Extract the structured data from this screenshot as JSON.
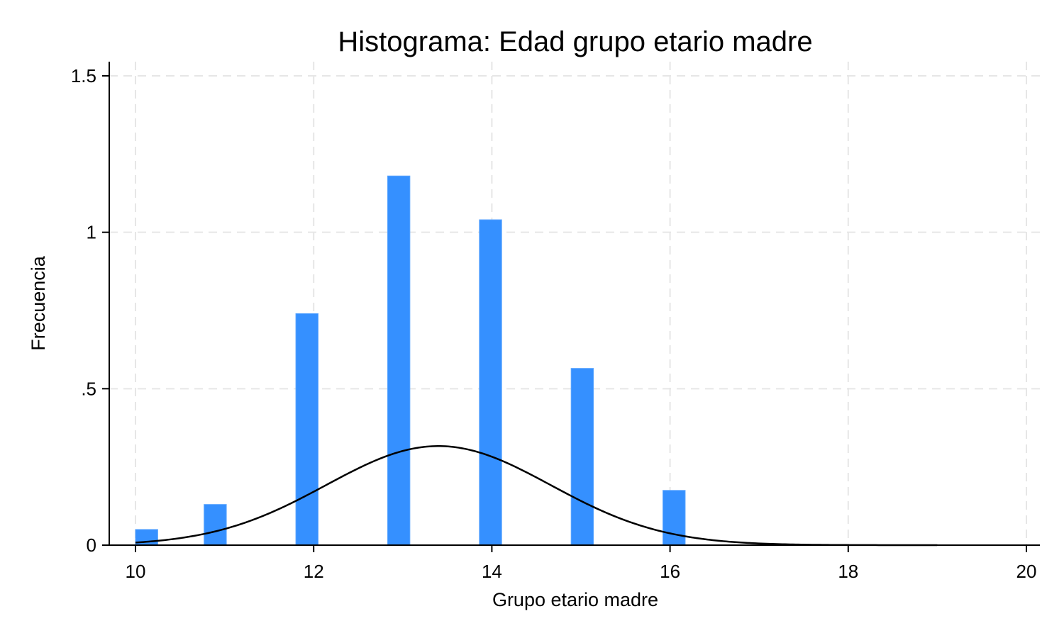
{
  "chart_data": {
    "type": "bar",
    "title": "Histograma: Edad grupo etario madre",
    "xlabel": "Grupo etario madre",
    "ylabel": "Frecuencia",
    "xlim": [
      9.85,
      20.3
    ],
    "ylim": [
      0,
      1.56
    ],
    "xticks": [
      10,
      12,
      14,
      16,
      18,
      20
    ],
    "xtick_labels": [
      "10",
      "12",
      "14",
      "16",
      "18",
      "20"
    ],
    "yticks": [
      0,
      0.5,
      1,
      1.5
    ],
    "ytick_labels": [
      "0",
      ".5",
      "1",
      "1.5"
    ],
    "grid": true,
    "bin_width": 0.25,
    "bars": [
      {
        "x": 10,
        "value": 0.05
      },
      {
        "x": 10.77,
        "value": 0.13
      },
      {
        "x": 11.8,
        "value": 0.74
      },
      {
        "x": 12.83,
        "value": 1.18
      },
      {
        "x": 13.86,
        "value": 1.04
      },
      {
        "x": 14.89,
        "value": 0.565
      },
      {
        "x": 15.92,
        "value": 0.175
      }
    ],
    "density": {
      "type": "normal",
      "mean": 13.4,
      "sd": 1.26,
      "x_range": [
        10,
        19
      ]
    },
    "colors": {
      "bar": "#3590ff",
      "density": "#000000"
    }
  }
}
